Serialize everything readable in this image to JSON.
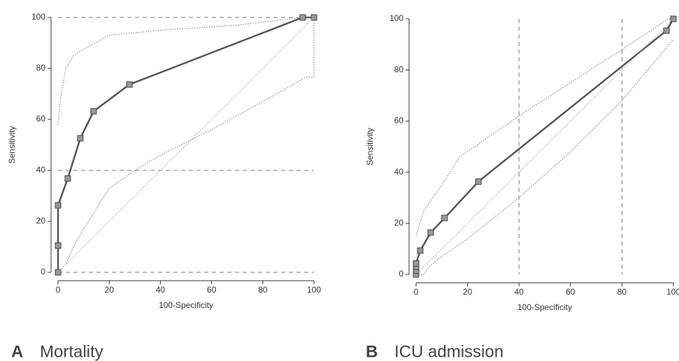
{
  "chart_data": [
    {
      "type": "line",
      "panel_label": "A",
      "caption": "Mortality",
      "x_label": "100-Specificity",
      "y_label": "Sensitivity",
      "xlim": [
        0,
        100
      ],
      "ylim": [
        0,
        100
      ],
      "xticks": [
        0,
        20,
        40,
        60,
        80,
        100
      ],
      "yticks": [
        0,
        20,
        40,
        60,
        80,
        100
      ],
      "hlines": [
        0,
        40,
        100
      ],
      "vlines": [],
      "series": [
        {
          "style": "solid",
          "marker": "square",
          "color": "#555555",
          "x": [
            0,
            0,
            0,
            3.8,
            8.7,
            13.9,
            27.9,
            95.6,
            100
          ],
          "values": [
            0,
            10.5,
            26.3,
            36.8,
            52.6,
            63.2,
            73.7,
            100,
            100
          ]
        },
        {
          "style": "dotted",
          "color": "#888888",
          "x": [
            0,
            1,
            3,
            6,
            10,
            20,
            40,
            70,
            95.6,
            100
          ],
          "values": [
            58,
            68,
            80,
            85,
            87.5,
            93,
            95,
            97,
            100,
            100
          ]
        },
        {
          "style": "dotted",
          "color": "#888888",
          "x": [
            0,
            3,
            6,
            10,
            20,
            30,
            40,
            60,
            80,
            97,
            100,
            100
          ],
          "values": [
            0,
            3,
            10,
            17,
            33,
            40,
            46,
            56,
            67,
            76.6,
            76.6,
            100
          ]
        },
        {
          "style": "dotted",
          "color": "#aaaaaa",
          "x": [
            0,
            100
          ],
          "values": [
            0,
            100
          ]
        }
      ]
    },
    {
      "type": "line",
      "panel_label": "B",
      "caption": "ICU admission",
      "x_label": "100-Specificity",
      "y_label": "Sensitivity",
      "xlim": [
        0,
        100
      ],
      "ylim": [
        0,
        100
      ],
      "xticks": [
        0,
        20,
        40,
        60,
        80,
        100
      ],
      "yticks": [
        0,
        20,
        40,
        60,
        80,
        100
      ],
      "hlines": [],
      "vlines": [
        40,
        80
      ],
      "series": [
        {
          "style": "solid",
          "marker": "square",
          "color": "#555555",
          "x": [
            0,
            0,
            0,
            0,
            1.6,
            5.7,
            11.1,
            24.2,
            97.3,
            100
          ],
          "values": [
            0,
            1.5,
            3,
            4.3,
            9.3,
            16.4,
            22.1,
            36.3,
            95.4,
            100
          ]
        },
        {
          "style": "dotted",
          "color": "#888888",
          "x": [
            0,
            3,
            10,
            17,
            40,
            60,
            80,
            98,
            100
          ],
          "values": [
            15,
            25,
            35,
            46,
            62,
            75,
            88,
            100,
            100
          ]
        },
        {
          "style": "dotted",
          "color": "#888888",
          "x": [
            0,
            3,
            5,
            10,
            20,
            40,
            60,
            80,
            95,
            100
          ],
          "values": [
            0,
            0,
            3,
            7,
            14,
            30,
            48,
            68,
            86,
            92
          ]
        },
        {
          "style": "dotted",
          "color": "#aaaaaa",
          "x": [
            0,
            100
          ],
          "values": [
            0,
            100
          ]
        }
      ]
    }
  ]
}
